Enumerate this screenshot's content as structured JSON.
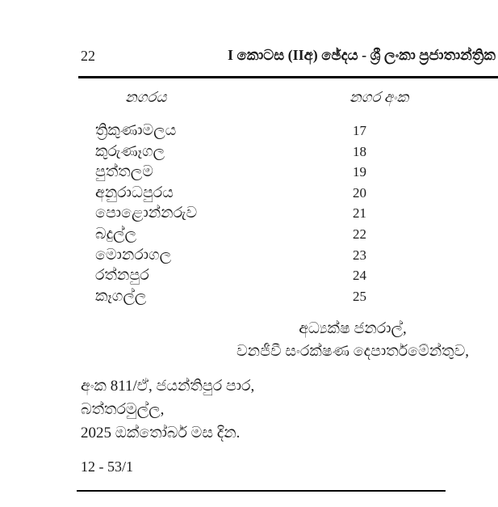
{
  "page": {
    "number": "22",
    "header_title": "I කොටස (IIඅ) ඡේදය - ශ්‍රී ලංකා ප්‍රජාතාන්ත්‍රික"
  },
  "table": {
    "columns": {
      "city_label": "නගරය",
      "number_label": "නගර අංක"
    },
    "rows": [
      {
        "city": "ත්‍රිකුණාමලය",
        "number": "17"
      },
      {
        "city": "කුරුණෑගල",
        "number": "18"
      },
      {
        "city": "පුත්තලම",
        "number": "19"
      },
      {
        "city": "අනුරාධපුරය",
        "number": "20"
      },
      {
        "city": "පොළොන්නරුව",
        "number": "21"
      },
      {
        "city": "බදුල්ල",
        "number": "22"
      },
      {
        "city": "මොනරාගල",
        "number": "23"
      },
      {
        "city": "රත්නපුර",
        "number": "24"
      },
      {
        "city": "කෑගල්ල",
        "number": "25"
      }
    ]
  },
  "signature": {
    "line1": "අධ්‍යක්ෂ ජනරාල්,",
    "line2": "වනජීවී සංරක්ෂණ දෙපාර්තමේන්තුව,"
  },
  "address": {
    "line1": "අංක 811/ඒ, ජයන්තිපුර පාර,",
    "line2": "බත්තරමුල්ල,",
    "line3": "2025 ඔක්තෝබර් මස දින."
  },
  "footer": {
    "code": "12 - 53/1"
  },
  "colors": {
    "text": "#1b1b1b",
    "rule": "#000000",
    "background": "#ffffff"
  }
}
